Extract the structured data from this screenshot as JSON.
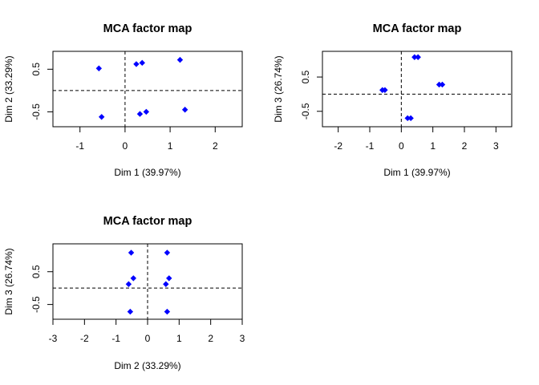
{
  "chart_data": [
    {
      "type": "scatter",
      "title": "MCA factor map",
      "xlabel": "Dim 1 (39.97%)",
      "ylabel": "Dim 2 (33.29%)",
      "xlim": [
        -1.6,
        2.6
      ],
      "ylim": [
        -0.85,
        0.92
      ],
      "xticks": [
        -1,
        0,
        1,
        2
      ],
      "yticks": [
        -0.5,
        0.5
      ],
      "reference_lines": {
        "x": 0,
        "y": 0
      },
      "grid": false,
      "points": [
        {
          "x": -0.58,
          "y": 0.52
        },
        {
          "x": -0.52,
          "y": -0.62
        },
        {
          "x": 0.25,
          "y": 0.62
        },
        {
          "x": 0.38,
          "y": 0.65
        },
        {
          "x": 1.22,
          "y": 0.72
        },
        {
          "x": 0.33,
          "y": -0.55
        },
        {
          "x": 0.47,
          "y": -0.5
        },
        {
          "x": 1.33,
          "y": -0.45
        }
      ]
    },
    {
      "type": "scatter",
      "title": "MCA factor map",
      "xlabel": "Dim 1 (39.97%)",
      "ylabel": "Dim 3 (26.74%)",
      "xlim": [
        -2.5,
        3.5
      ],
      "ylim": [
        -0.95,
        1.25
      ],
      "xticks": [
        -2,
        -1,
        0,
        1,
        2,
        3
      ],
      "yticks": [
        -0.5,
        0.5
      ],
      "reference_lines": {
        "x": 0,
        "y": 0
      },
      "grid": false,
      "points": [
        {
          "x": 0.42,
          "y": 1.08
        },
        {
          "x": 0.53,
          "y": 1.08
        },
        {
          "x": -0.6,
          "y": 0.12
        },
        {
          "x": -0.52,
          "y": 0.12
        },
        {
          "x": 1.2,
          "y": 0.28
        },
        {
          "x": 1.3,
          "y": 0.28
        },
        {
          "x": 0.2,
          "y": -0.7
        },
        {
          "x": 0.3,
          "y": -0.7
        }
      ]
    },
    {
      "type": "scatter",
      "title": "MCA factor map",
      "xlabel": "Dim 2 (33.29%)",
      "ylabel": "Dim 3 (26.74%)",
      "xlim": [
        -3,
        3
      ],
      "ylim": [
        -0.95,
        1.35
      ],
      "xticks": [
        -3,
        -2,
        -1,
        0,
        1,
        2,
        3
      ],
      "yticks": [
        -0.5,
        0.5
      ],
      "reference_lines": {
        "x": 0,
        "y": 0
      },
      "grid": false,
      "points": [
        {
          "x": -0.52,
          "y": 1.08
        },
        {
          "x": 0.62,
          "y": 1.08
        },
        {
          "x": -0.6,
          "y": 0.12
        },
        {
          "x": -0.45,
          "y": 0.3
        },
        {
          "x": 0.58,
          "y": 0.12
        },
        {
          "x": 0.68,
          "y": 0.3
        },
        {
          "x": -0.55,
          "y": -0.72
        },
        {
          "x": 0.62,
          "y": -0.72
        }
      ]
    }
  ]
}
